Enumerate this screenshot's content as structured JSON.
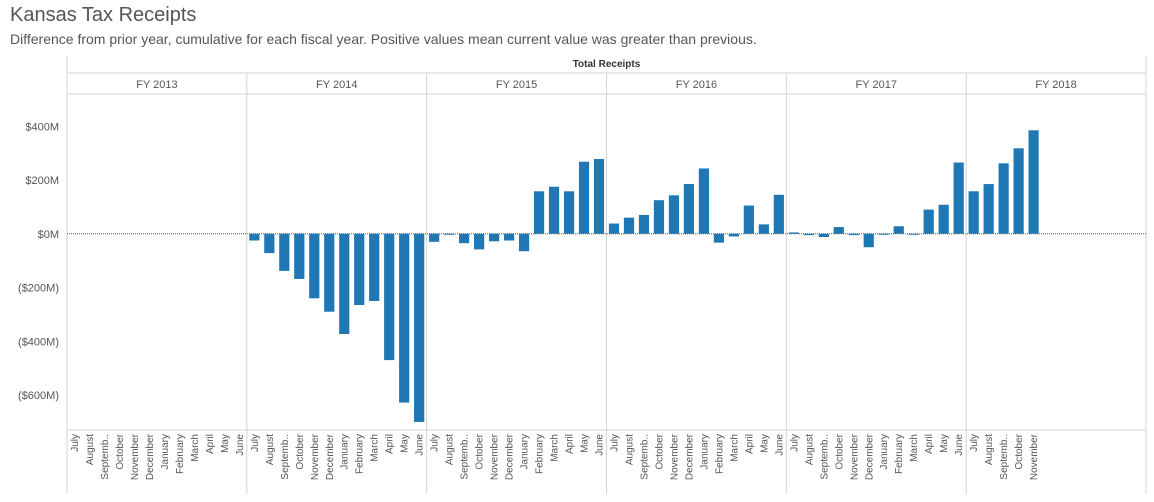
{
  "page": {
    "title": "Kansas Tax Receipts",
    "subtitle": "Difference from prior year, cumulative for each fiscal year.  Positive values mean current value was greater than previous."
  },
  "colors": {
    "bar": "#1f77b4",
    "grid_line": "#d4d4d4",
    "text": "#555555",
    "zero_line": "#555555"
  },
  "chart_data": {
    "type": "bar",
    "measure_header": "Total Receipts",
    "grid": true,
    "ylim": [
      -730,
      520
    ],
    "y_ticks": [
      {
        "value": 400,
        "label": "$400M"
      },
      {
        "value": 200,
        "label": "$200M"
      },
      {
        "value": 0,
        "label": "$0M"
      },
      {
        "value": -200,
        "label": "($200M)"
      },
      {
        "value": -400,
        "label": "($400M)"
      },
      {
        "value": -600,
        "label": "($600M)"
      }
    ],
    "panels": [
      {
        "label": "FY 2013",
        "categories": [
          "July",
          "August",
          "Septemb..",
          "October",
          "November",
          "December",
          "January",
          "February",
          "March",
          "April",
          "May",
          "June"
        ],
        "values": [
          null,
          null,
          null,
          null,
          null,
          null,
          null,
          null,
          null,
          null,
          null,
          null
        ]
      },
      {
        "label": "FY 2014",
        "categories": [
          "July",
          "August",
          "Septemb..",
          "October",
          "November",
          "December",
          "January",
          "February",
          "March",
          "April",
          "May",
          "June"
        ],
        "values": [
          -25,
          -72,
          -138,
          -168,
          -240,
          -290,
          -373,
          -265,
          -250,
          -470,
          -628,
          -700
        ]
      },
      {
        "label": "FY 2015",
        "categories": [
          "July",
          "August",
          "Septemb..",
          "October",
          "November",
          "December",
          "January",
          "February",
          "March",
          "April",
          "May",
          "June"
        ],
        "values": [
          -30,
          -3,
          -35,
          -58,
          -28,
          -25,
          -65,
          158,
          175,
          158,
          268,
          278
        ]
      },
      {
        "label": "FY 2016",
        "categories": [
          "July",
          "August",
          "Septemb..",
          "October",
          "November",
          "December",
          "January",
          "February",
          "March",
          "April",
          "May",
          "June"
        ],
        "values": [
          38,
          60,
          70,
          125,
          143,
          185,
          243,
          -33,
          -10,
          105,
          35,
          145
        ]
      },
      {
        "label": "FY 2017",
        "categories": [
          "July",
          "August",
          "Septemb..",
          "October",
          "November",
          "December",
          "January",
          "February",
          "March",
          "April",
          "May",
          "June"
        ],
        "values": [
          5,
          -5,
          -12,
          25,
          -5,
          -50,
          -3,
          28,
          -3,
          90,
          108,
          265
        ]
      },
      {
        "label": "FY 2018",
        "categories": [
          "July",
          "August",
          "Septemb..",
          "October",
          "November"
        ],
        "values": [
          158,
          185,
          262,
          318,
          385
        ]
      }
    ]
  }
}
